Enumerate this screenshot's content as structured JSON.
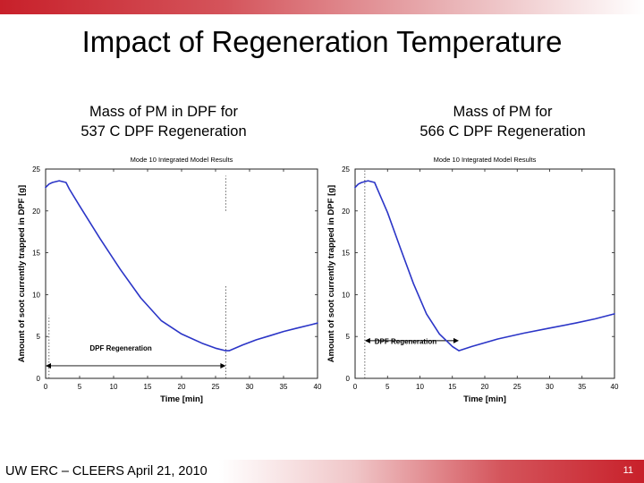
{
  "slide": {
    "title": "Impact of Regeneration Temperature",
    "footer": "UW ERC – CLEERS April 21, 2010",
    "page_number": "11"
  },
  "colors": {
    "curve": "#2b35c7",
    "accent": "#c8202a"
  },
  "chart_data": [
    {
      "type": "line",
      "heading": [
        "Mass of PM in DPF for",
        "537 C DPF Regeneration"
      ],
      "title": "Mode 10 Integrated Model Results",
      "xlabel": "Time [min]",
      "ylabel": "Amount of soot currently trapped in DPF [g]",
      "xlim": [
        0,
        40
      ],
      "ylim": [
        0,
        25
      ],
      "xticks": [
        0,
        5,
        10,
        15,
        20,
        25,
        30,
        35,
        40
      ],
      "yticks": [
        0,
        5,
        10,
        15,
        20,
        25
      ],
      "x": [
        0,
        0.5,
        1,
        2,
        3,
        3.5,
        5,
        8,
        11,
        14,
        17,
        20,
        23,
        25,
        26.5,
        27,
        29,
        31,
        33,
        35,
        37,
        39,
        40
      ],
      "y": [
        22.8,
        23.2,
        23.4,
        23.6,
        23.4,
        22.6,
        20.6,
        16.7,
        13.0,
        9.6,
        6.9,
        5.3,
        4.2,
        3.6,
        3.3,
        3.3,
        4.0,
        4.6,
        5.1,
        5.6,
        6.0,
        6.4,
        6.6
      ],
      "annotation": {
        "text": "DPF Regeneration",
        "x_start": 0,
        "x_end": 26.5,
        "y": 1.5,
        "markers": [
          {
            "x": 0.5,
            "y_from": 0,
            "y_to": 7.5
          },
          {
            "x": 26.5,
            "y_from": 0,
            "y_to": 11.0
          },
          {
            "x": 26.5,
            "y_from": 20.0,
            "y_to": 24.2
          }
        ]
      }
    },
    {
      "type": "line",
      "heading": [
        "Mass of PM for",
        "566 C DPF Regeneration"
      ],
      "title": "Mode 10 Integrated Model Results",
      "xlabel": "Time [min]",
      "ylabel": "Amount of soot currently trapped in DPF [g]",
      "xlim": [
        0,
        40
      ],
      "ylim": [
        0,
        25
      ],
      "xticks": [
        0,
        5,
        10,
        15,
        20,
        25,
        30,
        35,
        40
      ],
      "yticks": [
        0,
        5,
        10,
        15,
        20,
        25
      ],
      "x": [
        0,
        0.5,
        1,
        2,
        3,
        3.5,
        5,
        7,
        9,
        11,
        13,
        15,
        16,
        18,
        22,
        26,
        30,
        34,
        37,
        40
      ],
      "y": [
        22.8,
        23.2,
        23.4,
        23.6,
        23.4,
        22.5,
        19.8,
        15.5,
        11.3,
        7.7,
        5.3,
        3.8,
        3.3,
        3.8,
        4.7,
        5.4,
        6.0,
        6.6,
        7.1,
        7.7
      ],
      "annotation": {
        "text": "DPF Regeneration",
        "x_start": 1.5,
        "x_end": 16,
        "y": 4.5,
        "markers": [
          {
            "x": 1.5,
            "y_from": 0,
            "y_to": 25
          }
        ]
      }
    }
  ]
}
